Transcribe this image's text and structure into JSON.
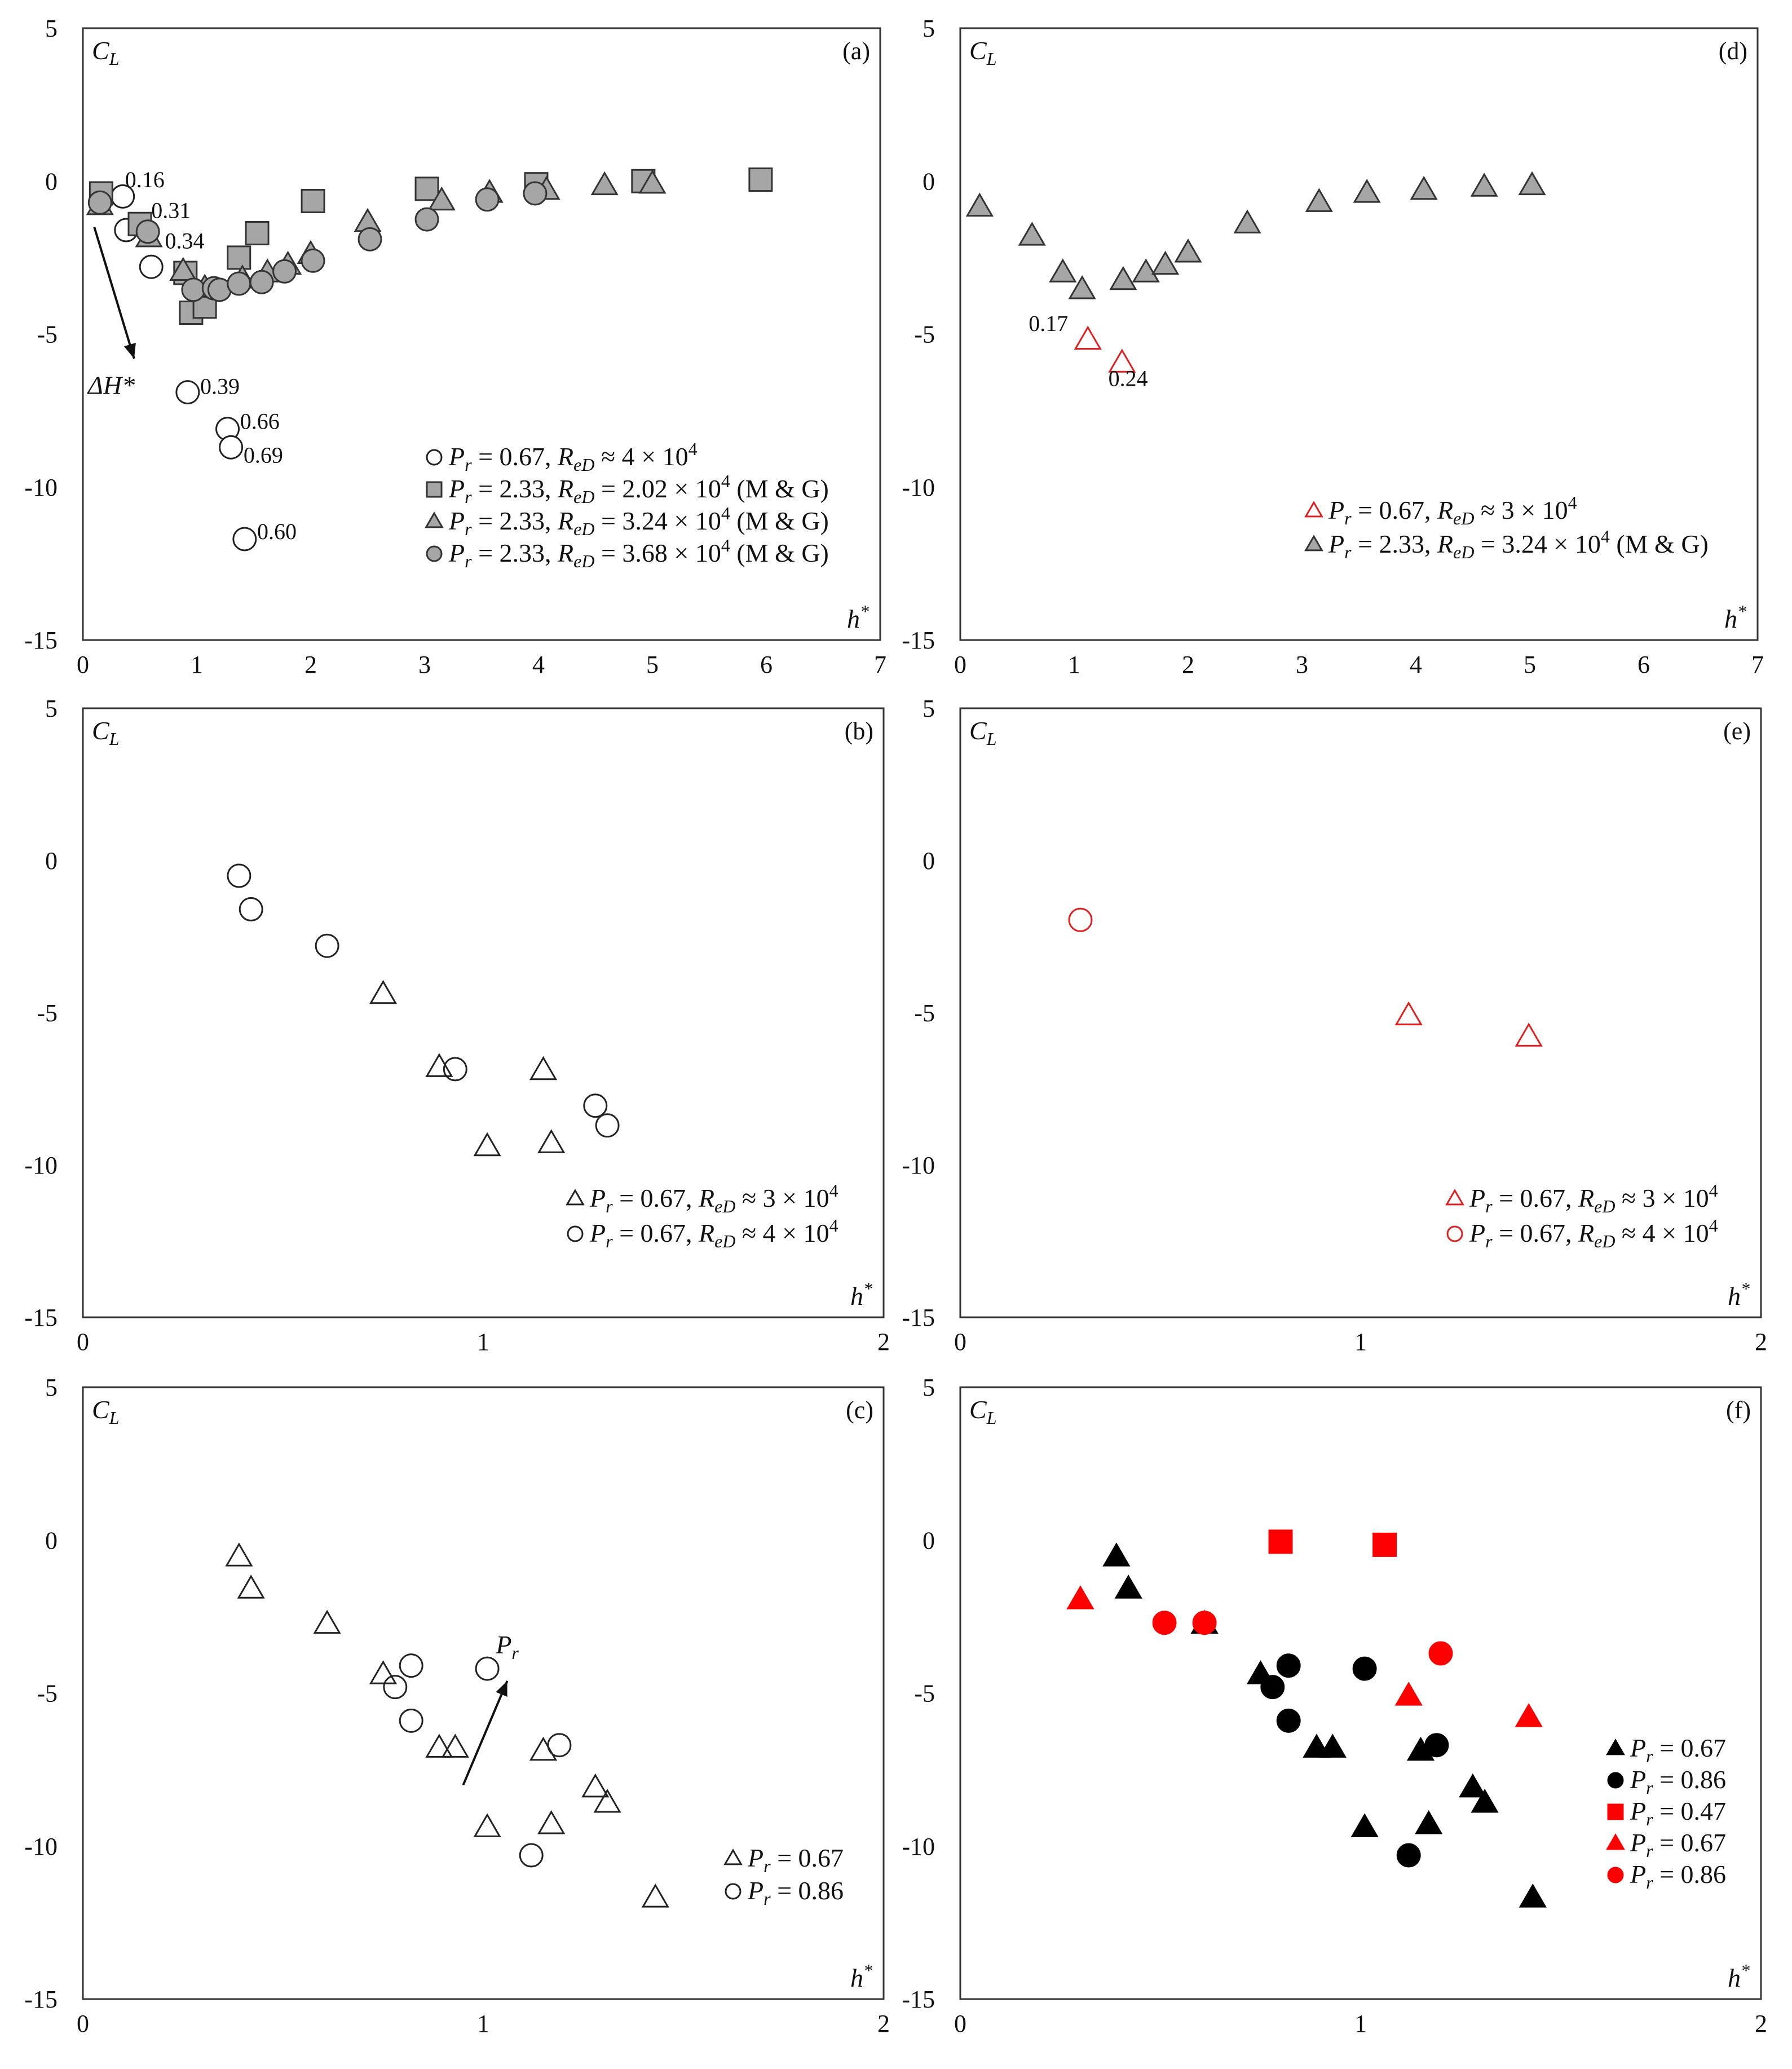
{
  "figure": {
    "axis_label_y": "C",
    "axis_label_y_sub": "L",
    "axis_label_x": "h",
    "axis_label_x_sup": "*"
  },
  "chart_data": [
    {
      "id": "a",
      "type": "scatter",
      "panel_label": "(a)",
      "xlabel": "h*",
      "ylabel": "C_L",
      "xlim": [
        0,
        7
      ],
      "ylim": [
        -15,
        5
      ],
      "xticks": [
        0,
        1,
        2,
        3,
        4,
        5,
        6,
        7
      ],
      "yticks": [
        5,
        0,
        -5,
        -10,
        -15
      ],
      "series": [
        {
          "name": "Pr = 0.67, ReD ≈ 4 × 10^4",
          "legend_parts": {
            "pr": "0.67",
            "mid": ", ",
            "re": "≈ 4 × 10",
            "exp": "4",
            "suffix": ""
          },
          "marker": "circle",
          "fill": "#ffffff",
          "stroke": "#222222",
          "points": [
            [
              0.35,
              -0.5
            ],
            [
              0.38,
              -1.6
            ],
            [
              0.6,
              -2.8
            ],
            [
              0.92,
              -6.9
            ],
            [
              1.27,
              -8.1
            ],
            [
              1.3,
              -8.7
            ],
            [
              1.42,
              -11.7
            ]
          ]
        },
        {
          "name": "Pr = 2.33, ReD = 2.02 × 10^4 (M & G)",
          "legend_parts": {
            "pr": "2.33",
            "mid": ", ",
            "re": "= 2.02 × 10",
            "exp": "4",
            "suffix": " (M & G)"
          },
          "marker": "square",
          "fill": "#a6a6a6",
          "stroke": "#333333",
          "points": [
            [
              0.16,
              -0.4
            ],
            [
              0.5,
              -1.4
            ],
            [
              0.9,
              -3.0
            ],
            [
              0.95,
              -4.3
            ],
            [
              1.07,
              -4.1
            ],
            [
              1.37,
              -2.5
            ],
            [
              1.53,
              -1.7
            ],
            [
              2.02,
              -0.65
            ],
            [
              3.02,
              -0.25
            ],
            [
              3.98,
              -0.1
            ],
            [
              4.92,
              0.0
            ],
            [
              5.95,
              0.05
            ]
          ]
        },
        {
          "name": "Pr = 2.33, ReD = 3.24 × 10^4 (M & G)",
          "legend_parts": {
            "pr": "2.33",
            "mid": ", ",
            "re": "= 3.24 × 10",
            "exp": "4",
            "suffix": " (M & G)"
          },
          "marker": "triangle",
          "fill": "#a6a6a6",
          "stroke": "#333333",
          "points": [
            [
              0.15,
              -0.8
            ],
            [
              0.58,
              -1.85
            ],
            [
              0.88,
              -2.95
            ],
            [
              1.07,
              -3.5
            ],
            [
              1.4,
              -3.2
            ],
            [
              1.62,
              -3.0
            ],
            [
              1.8,
              -2.75
            ],
            [
              2.0,
              -2.4
            ],
            [
              2.5,
              -1.35
            ],
            [
              3.15,
              -0.65
            ],
            [
              3.57,
              -0.4
            ],
            [
              4.07,
              -0.3
            ],
            [
              4.58,
              -0.15
            ],
            [
              5.0,
              -0.1
            ]
          ]
        },
        {
          "name": "Pr = 2.33, ReD = 3.68 × 10^4 (M & G)",
          "legend_parts": {
            "pr": "2.33",
            "mid": ", ",
            "re": "= 3.68 × 10",
            "exp": "4",
            "suffix": " (M & G)"
          },
          "marker": "circle",
          "fill": "#a6a6a6",
          "stroke": "#333333",
          "points": [
            [
              0.15,
              -0.7
            ],
            [
              0.57,
              -1.65
            ],
            [
              0.97,
              -3.55
            ],
            [
              1.15,
              -3.5
            ],
            [
              1.2,
              -3.55
            ],
            [
              1.37,
              -3.35
            ],
            [
              1.57,
              -3.3
            ],
            [
              1.77,
              -2.95
            ],
            [
              2.02,
              -2.6
            ],
            [
              2.52,
              -1.9
            ],
            [
              3.02,
              -1.25
            ],
            [
              3.55,
              -0.6
            ],
            [
              3.97,
              -0.4
            ]
          ]
        }
      ],
      "annotations": [
        {
          "text": "0.16",
          "x": 0.37,
          "y": -0.2
        },
        {
          "text": "0.31",
          "x": 0.6,
          "y": -1.2
        },
        {
          "text": "0.34",
          "x": 0.72,
          "y": -2.2
        },
        {
          "text": "0.39",
          "x": 1.03,
          "y": -6.95
        },
        {
          "text": "0.66",
          "x": 1.38,
          "y": -8.1
        },
        {
          "text": "0.69",
          "x": 1.41,
          "y": -9.2
        },
        {
          "text": "0.60",
          "x": 1.53,
          "y": -11.7
        }
      ],
      "arrow": {
        "from": [
          0.1,
          -1.5
        ],
        "to": [
          0.45,
          -5.8
        ],
        "label": "ΔH*",
        "label_x": 0.25,
        "label_y": -6.95
      },
      "legend_position": "bottom-right"
    },
    {
      "id": "d",
      "type": "scatter",
      "panel_label": "(d)",
      "xlabel": "h*",
      "ylabel": "C_L",
      "xlim": [
        0,
        7
      ],
      "ylim": [
        -15,
        5
      ],
      "xticks": [
        0,
        1,
        2,
        3,
        4,
        5,
        6,
        7
      ],
      "yticks": [
        5,
        0,
        -5,
        -10,
        -15
      ],
      "series": [
        {
          "name": "Pr = 0.67, ReD ≈ 3 × 10^4",
          "legend_parts": {
            "pr": "0.67",
            "mid": ", ",
            "re": "≈ 3 × 10",
            "exp": "4",
            "suffix": ""
          },
          "marker": "triangle",
          "fill": "none",
          "stroke": "#e02020",
          "points": [
            [
              1.12,
              -5.2
            ],
            [
              1.42,
              -5.95
            ]
          ]
        },
        {
          "name": "Pr = 2.33, ReD = 3.24 × 10^4 (M & G)",
          "legend_parts": {
            "pr": "2.33",
            "mid": ", ",
            "re": "= 3.24 × 10",
            "exp": "4",
            "suffix": "  (M & G)"
          },
          "marker": "triangle",
          "fill": "#a6a6a6",
          "stroke": "#333333",
          "points": [
            [
              0.17,
              -0.85
            ],
            [
              0.63,
              -1.8
            ],
            [
              0.9,
              -3.0
            ],
            [
              1.07,
              -3.55
            ],
            [
              1.43,
              -3.25
            ],
            [
              1.63,
              -3.0
            ],
            [
              1.8,
              -2.75
            ],
            [
              2.0,
              -2.35
            ],
            [
              2.52,
              -1.4
            ],
            [
              3.15,
              -0.7
            ],
            [
              3.57,
              -0.4
            ],
            [
              4.07,
              -0.3
            ],
            [
              4.6,
              -0.2
            ],
            [
              5.02,
              -0.15
            ]
          ]
        }
      ],
      "annotations": [
        {
          "text": "0.17",
          "x": 0.6,
          "y": -4.9
        },
        {
          "text": "0.24",
          "x": 1.3,
          "y": -6.7
        }
      ],
      "legend_position": "bottom-right"
    },
    {
      "id": "b",
      "type": "scatter",
      "panel_label": "(b)",
      "xlabel": "h*",
      "ylabel": "C_L",
      "xlim": [
        0,
        2
      ],
      "ylim": [
        -15,
        5
      ],
      "xticks": [
        0,
        1,
        2
      ],
      "yticks": [
        5,
        0,
        -5,
        -10,
        -15
      ],
      "series": [
        {
          "name": "Pr = 0.67, ReD ≈ 3 × 10^4",
          "legend_parts": {
            "pr": "0.67",
            "mid": ", ",
            "re": "≈ 3 × 10",
            "exp": "4",
            "suffix": ""
          },
          "marker": "triangle",
          "fill": "none",
          "stroke": "#222222",
          "points": [
            [
              0.75,
              -4.4
            ],
            [
              0.89,
              -6.8
            ],
            [
              1.01,
              -9.4
            ],
            [
              1.15,
              -6.9
            ],
            [
              1.17,
              -9.3
            ]
          ]
        },
        {
          "name": "Pr = 0.67, ReD ≈ 4 × 10^4",
          "legend_parts": {
            "pr": "0.67",
            "mid": ", ",
            "re": "≈ 4 × 10",
            "exp": "4",
            "suffix": ""
          },
          "marker": "circle",
          "fill": "none",
          "stroke": "#222222",
          "points": [
            [
              0.39,
              -0.5
            ],
            [
              0.42,
              -1.6
            ],
            [
              0.61,
              -2.8
            ],
            [
              0.93,
              -6.85
            ],
            [
              1.28,
              -8.05
            ],
            [
              1.31,
              -8.7
            ]
          ]
        }
      ],
      "legend_position": "bottom-right"
    },
    {
      "id": "e",
      "type": "scatter",
      "panel_label": "(e)",
      "xlabel": "h*",
      "ylabel": "C_L",
      "xlim": [
        0,
        2
      ],
      "ylim": [
        -15,
        5
      ],
      "xticks": [
        0,
        1,
        2
      ],
      "yticks": [
        5,
        0,
        -5,
        -10,
        -15
      ],
      "series": [
        {
          "name": "Pr = 0.67, ReD ≈ 3 × 10^4",
          "legend_parts": {
            "pr": "0.67",
            "mid": ", ",
            "re": "≈ 3 × 10",
            "exp": "4",
            "suffix": ""
          },
          "marker": "triangle",
          "fill": "none",
          "stroke": "#e02020",
          "points": [
            [
              1.12,
              -5.1
            ],
            [
              1.42,
              -5.8
            ]
          ]
        },
        {
          "name": "Pr = 0.67, ReD ≈ 4 × 10^4",
          "legend_parts": {
            "pr": "0.67",
            "mid": ", ",
            "re": "≈ 4 × 10",
            "exp": "4",
            "suffix": ""
          },
          "marker": "circle",
          "fill": "none",
          "stroke": "#e02020",
          "points": [
            [
              0.3,
              -1.95
            ]
          ]
        }
      ],
      "legend_position": "bottom-right"
    },
    {
      "id": "c",
      "type": "scatter",
      "panel_label": "(c)",
      "xlabel": "h*",
      "ylabel": "C_L",
      "xlim": [
        0,
        2
      ],
      "ylim": [
        -15,
        5
      ],
      "xticks": [
        0,
        1,
        2
      ],
      "yticks": [
        5,
        0,
        -5,
        -10,
        -15
      ],
      "series": [
        {
          "name": "Pr = 0.67",
          "legend_parts": {
            "pr": "0.67",
            "mid": "",
            "re": "",
            "exp": "",
            "suffix": ""
          },
          "marker": "triangle",
          "fill": "none",
          "stroke": "#222222",
          "points": [
            [
              0.39,
              -0.55
            ],
            [
              0.42,
              -1.6
            ],
            [
              0.61,
              -2.75
            ],
            [
              0.75,
              -4.4
            ],
            [
              0.89,
              -6.8
            ],
            [
              0.93,
              -6.8
            ],
            [
              1.01,
              -9.4
            ],
            [
              1.15,
              -6.9
            ],
            [
              1.17,
              -9.3
            ],
            [
              1.28,
              -8.1
            ],
            [
              1.31,
              -8.6
            ],
            [
              1.43,
              -11.7
            ]
          ]
        },
        {
          "name": "Pr = 0.86",
          "legend_parts": {
            "pr": "0.86",
            "mid": "",
            "re": "",
            "exp": "",
            "suffix": ""
          },
          "marker": "circle",
          "fill": "none",
          "stroke": "#222222",
          "points": [
            [
              0.78,
              -4.8
            ],
            [
              0.82,
              -4.1
            ],
            [
              0.82,
              -5.9
            ],
            [
              1.01,
              -4.2
            ],
            [
              1.12,
              -10.3
            ],
            [
              1.19,
              -6.7
            ]
          ]
        }
      ],
      "arrow": {
        "from": [
          0.95,
          -8.0
        ],
        "to": [
          1.06,
          -4.6
        ],
        "label": "P",
        "label_sub": "r",
        "label_x": 1.06,
        "label_y": -3.7
      },
      "legend_position": "bottom-right"
    },
    {
      "id": "f",
      "type": "scatter",
      "panel_label": "(f)",
      "xlabel": "h*",
      "ylabel": "C_L",
      "xlim": [
        0,
        2
      ],
      "ylim": [
        -15,
        5
      ],
      "xticks": [
        0,
        1,
        2
      ],
      "yticks": [
        5,
        0,
        -5,
        -10,
        -15
      ],
      "series": [
        {
          "name": "Pr = 0.67",
          "legend_parts": {
            "pr": "0.67",
            "mid": "",
            "re": "",
            "exp": "",
            "suffix": ""
          },
          "marker": "triangle",
          "fill": "#000000",
          "stroke": "#000000",
          "points": [
            [
              0.39,
              -0.55
            ],
            [
              0.42,
              -1.6
            ],
            [
              0.61,
              -2.75
            ],
            [
              0.75,
              -4.4
            ],
            [
              0.89,
              -6.8
            ],
            [
              0.93,
              -6.8
            ],
            [
              1.01,
              -9.4
            ],
            [
              1.15,
              -6.9
            ],
            [
              1.17,
              -9.3
            ],
            [
              1.28,
              -8.1
            ],
            [
              1.31,
              -8.6
            ],
            [
              1.43,
              -11.7
            ]
          ]
        },
        {
          "name": "Pr = 0.86",
          "legend_parts": {
            "pr": "0.86",
            "mid": "",
            "re": "",
            "exp": "",
            "suffix": ""
          },
          "marker": "circle",
          "fill": "#000000",
          "stroke": "#000000",
          "points": [
            [
              0.78,
              -4.8
            ],
            [
              0.82,
              -4.1
            ],
            [
              0.82,
              -5.9
            ],
            [
              1.01,
              -4.2
            ],
            [
              1.12,
              -10.3
            ],
            [
              1.19,
              -6.7
            ]
          ]
        },
        {
          "name": "Pr = 0.47",
          "legend_parts": {
            "pr": "0.47",
            "mid": "",
            "re": "",
            "exp": "",
            "suffix": ""
          },
          "marker": "square",
          "fill": "#ff0000",
          "stroke": "#ff0000",
          "points": [
            [
              0.8,
              -0.05
            ],
            [
              1.06,
              -0.15
            ]
          ]
        },
        {
          "name": "Pr = 0.67",
          "legend_parts": {
            "pr": "0.67",
            "mid": "",
            "re": "",
            "exp": "",
            "suffix": ""
          },
          "marker": "triangle",
          "fill": "#ff0000",
          "stroke": "#ff0000",
          "points": [
            [
              0.3,
              -1.95
            ],
            [
              1.12,
              -5.1
            ],
            [
              1.42,
              -5.8
            ]
          ]
        },
        {
          "name": "Pr = 0.86",
          "legend_parts": {
            "pr": "0.86",
            "mid": "",
            "re": "",
            "exp": "",
            "suffix": ""
          },
          "marker": "circle",
          "fill": "#ff0000",
          "stroke": "#ff0000",
          "points": [
            [
              0.51,
              -2.7
            ],
            [
              0.61,
              -2.7
            ],
            [
              1.2,
              -3.7
            ]
          ]
        }
      ],
      "legend_position": "bottom-right"
    }
  ]
}
